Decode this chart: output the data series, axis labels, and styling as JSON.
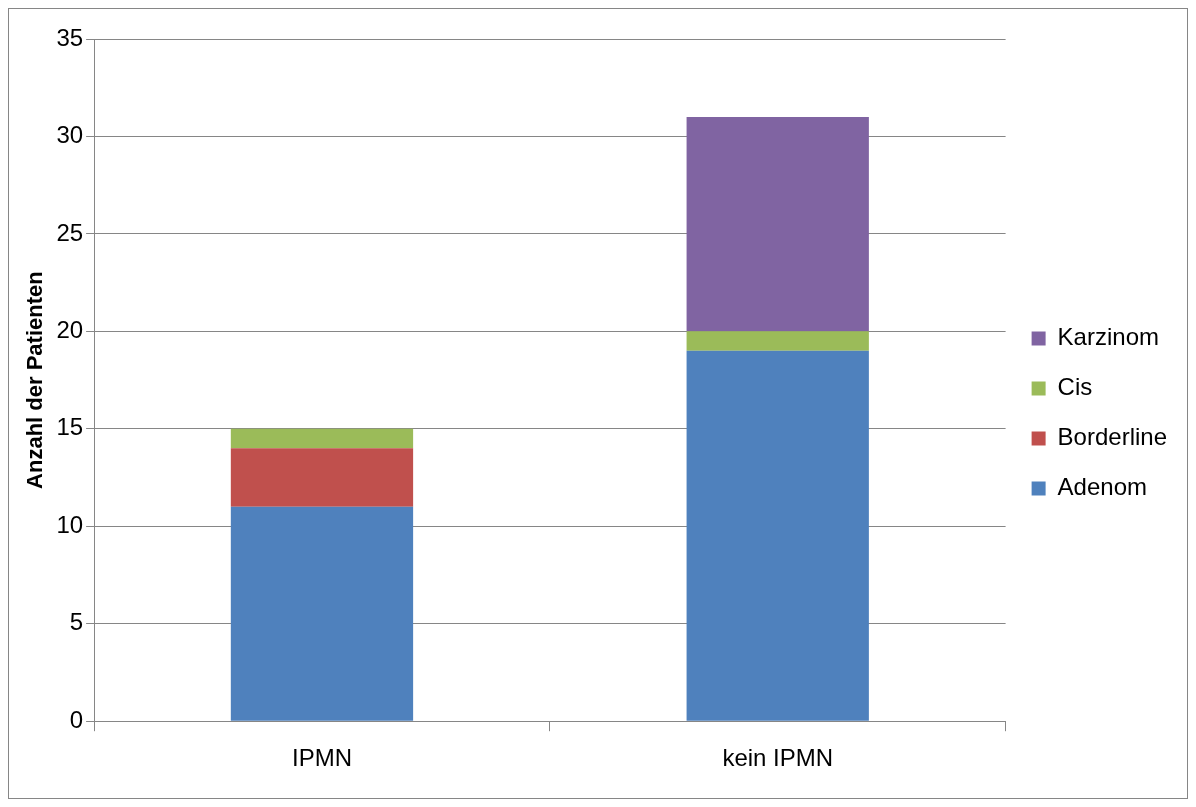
{
  "chart_data": {
    "type": "bar",
    "ylabel": "Anzahl der Patienten",
    "categories": [
      "IPMN",
      "kein IPMN"
    ],
    "stacked": true,
    "ylim": [
      0,
      35
    ],
    "yticks": [
      0,
      5,
      10,
      15,
      20,
      25,
      30,
      35
    ],
    "grid": "y",
    "legend": "right",
    "series": [
      {
        "name": "Adenom",
        "color": "#4f81bd",
        "values": [
          11,
          19
        ]
      },
      {
        "name": "Borderline",
        "color": "#c0504d",
        "values": [
          3,
          0
        ]
      },
      {
        "name": "Cis",
        "color": "#9bbb59",
        "values": [
          1,
          1
        ]
      },
      {
        "name": "Karzinom",
        "color": "#8064a2",
        "values": [
          0,
          11
        ]
      }
    ]
  }
}
